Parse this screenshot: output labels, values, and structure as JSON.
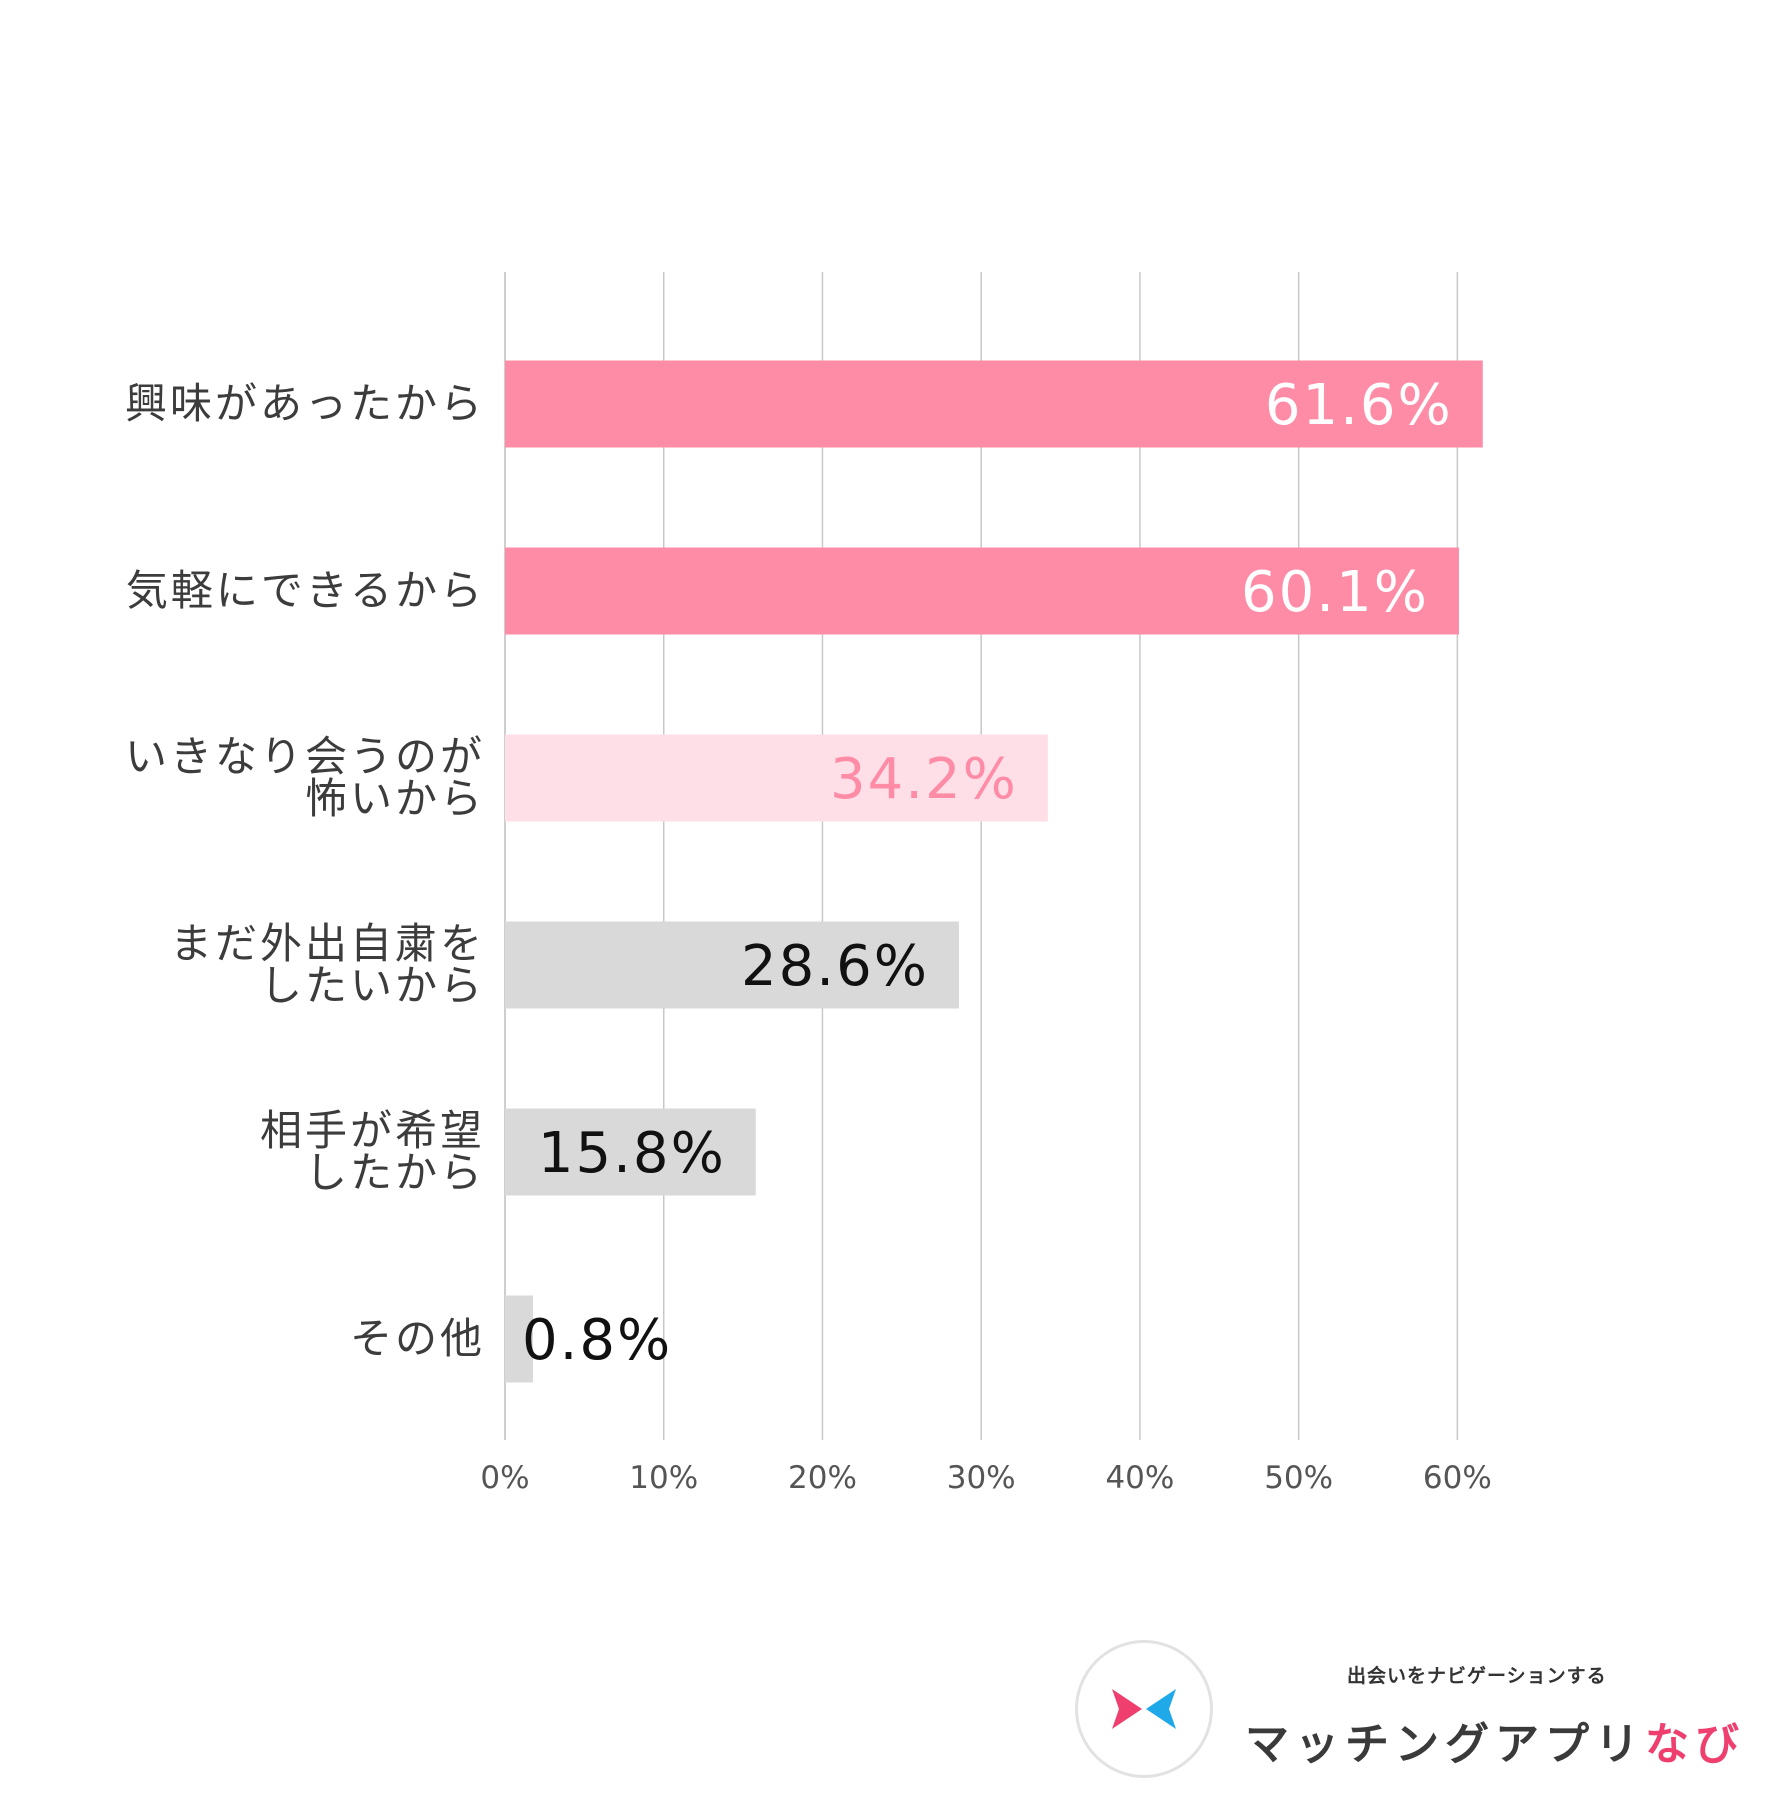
{
  "chart_data": {
    "type": "bar",
    "orientation": "horizontal",
    "categories": [
      [
        "興味があったから"
      ],
      [
        "気軽にできるから"
      ],
      [
        "いきなり会うのが",
        "怖いから"
      ],
      [
        "まだ外出自粛を",
        "したいから"
      ],
      [
        "相手が希望",
        "したから"
      ],
      [
        "その他"
      ]
    ],
    "values": [
      61.6,
      60.1,
      34.2,
      28.6,
      15.8,
      0.8
    ],
    "value_labels": [
      "61.6%",
      "60.1%",
      "34.2%",
      "28.6%",
      "15.8%",
      "0.8%"
    ],
    "bar_colors": [
      "#ff8ca7",
      "#ff8ca7",
      "#ffdfe7",
      "#d9d9d9",
      "#d9d9d9",
      "#d9d9d9"
    ],
    "label_colors": [
      "#ffffff",
      "#ffffff",
      "#ff8ca7",
      "#111111",
      "#111111",
      "#111111"
    ],
    "xlim": [
      0,
      63
    ],
    "xticks": [
      0,
      10,
      20,
      30,
      40,
      50,
      60
    ],
    "xtick_labels": [
      "0%",
      "10%",
      "20%",
      "30%",
      "40%",
      "50%",
      "60%"
    ],
    "grid": true,
    "legend": "none",
    "title": "",
    "xlabel": "",
    "ylabel": ""
  },
  "brand": {
    "tagline": "出会いをナビゲーションする",
    "name_main": "マッチングアプリ",
    "name_accent": "なび",
    "logo_icon": "double-arrow-logo-icon",
    "colors": {
      "left_arrow": "#ef3f6f",
      "right_arrow": "#1fa9e8"
    }
  }
}
